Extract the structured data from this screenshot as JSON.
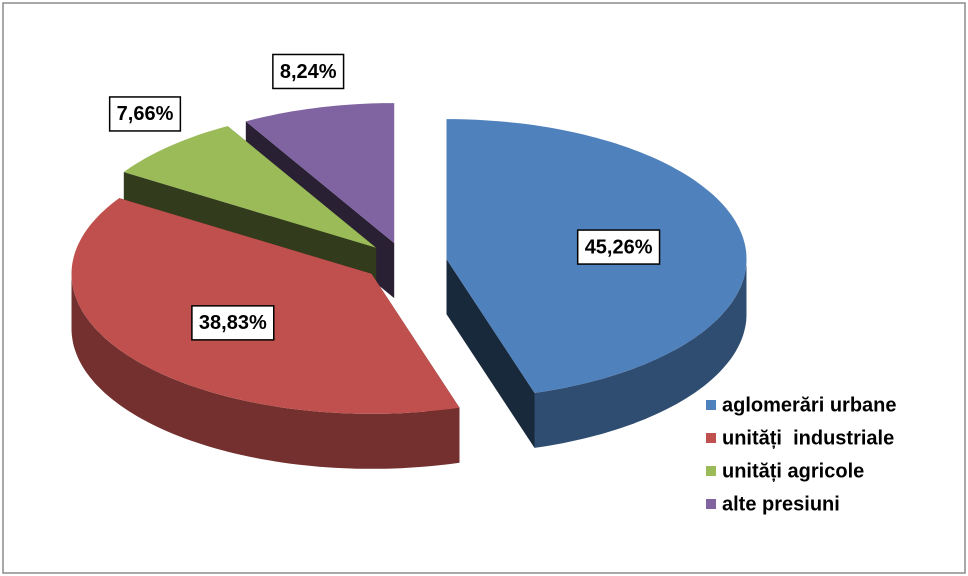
{
  "chart_data": {
    "type": "pie",
    "categories": [
      "aglomerări urbane",
      "unități  industriale",
      "unități agricole",
      "alte presiuni"
    ],
    "values": [
      45.26,
      38.83,
      7.66,
      8.24
    ],
    "value_labels": [
      "45,26%",
      "38,83%",
      "7,66%",
      "8,24%"
    ],
    "colors": [
      "#4f81bd",
      "#c0504d",
      "#9bbb59",
      "#8064a2"
    ],
    "legend": "right"
  }
}
